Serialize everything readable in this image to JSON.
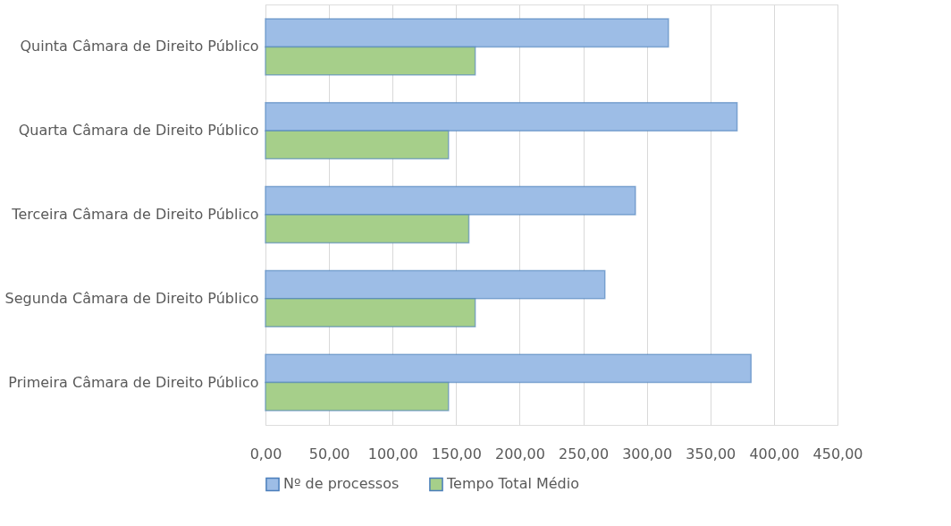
{
  "chart_data": {
    "type": "bar",
    "orientation": "horizontal",
    "categories": [
      "Quinta Câmara de Direito Público",
      "Quarta Câmara de Direito Público",
      "Terceira Câmara de Direito Público",
      "Segunda Câmara de Direito Público",
      "Primeira Câmara de Direito Público"
    ],
    "series": [
      {
        "name": "Nº de processos",
        "color": "#9dbde6",
        "values": [
          317,
          371,
          291,
          267,
          382
        ]
      },
      {
        "name": "Tempo Total Médio",
        "color": "#a6cf8a",
        "values": [
          165,
          144,
          160,
          165,
          144
        ]
      }
    ],
    "xlim": [
      0,
      450
    ],
    "xticks": [
      {
        "value": 0,
        "label": "0,00"
      },
      {
        "value": 50,
        "label": "50,00"
      },
      {
        "value": 100,
        "label": "100,00"
      },
      {
        "value": 150,
        "label": "150,00"
      },
      {
        "value": 200,
        "label": "200,00"
      },
      {
        "value": 250,
        "label": "250,00"
      },
      {
        "value": 300,
        "label": "300,00"
      },
      {
        "value": 350,
        "label": "350,00"
      },
      {
        "value": 400,
        "label": "400,00"
      },
      {
        "value": 450,
        "label": "450,00"
      }
    ],
    "grid": "x",
    "legend": "bottom"
  }
}
